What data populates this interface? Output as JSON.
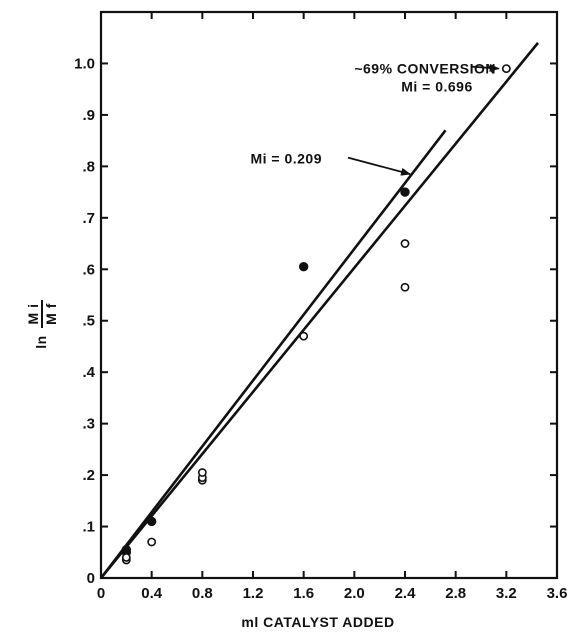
{
  "chart_data": {
    "type": "scatter",
    "xlabel": "ml CATALYST ADDED",
    "ylabel": "ln",
    "ylabel_numerator": "M i",
    "ylabel_denominator": "M f",
    "xlim": [
      0,
      3.6
    ],
    "ylim": [
      0,
      1.1
    ],
    "x_ticks": [
      0,
      0.4,
      0.8,
      1.2,
      1.6,
      2.0,
      2.4,
      2.8,
      3.2,
      3.6
    ],
    "x_tick_labels": [
      "0",
      "0.4",
      "0.8",
      "1.2",
      "1.6",
      "2.0",
      "2.4",
      "2.8",
      "3.2",
      "3.6"
    ],
    "y_ticks": [
      0,
      0.1,
      0.2,
      0.3,
      0.4,
      0.5,
      0.6,
      0.7,
      0.8,
      0.9,
      1.0
    ],
    "y_tick_labels": [
      "0",
      ".1",
      ".2",
      ".3",
      ".4",
      ".5",
      ".6",
      ".7",
      ".8",
      ".9",
      "1.0"
    ],
    "grid": false,
    "series": [
      {
        "marker": "filled",
        "color": "#111111",
        "x": [
          0.2,
          0.2,
          0.4,
          1.6,
          2.4
        ],
        "y": [
          0.05,
          0.055,
          0.11,
          0.605,
          0.75
        ]
      },
      {
        "marker": "open",
        "color": "#111111",
        "x": [
          0.2,
          0.2,
          0.4,
          0.8,
          0.8,
          0.8,
          1.6,
          2.4,
          2.4,
          3.2
        ],
        "y": [
          0.035,
          0.04,
          0.07,
          0.19,
          0.195,
          0.205,
          0.47,
          0.65,
          0.565,
          0.99
        ]
      }
    ],
    "lines": [
      {
        "x": [
          0,
          2.72
        ],
        "y": [
          0,
          0.87
        ]
      },
      {
        "x": [
          0,
          3.45
        ],
        "y": [
          0,
          1.04
        ]
      }
    ],
    "annotations": [
      {
        "text": "~69% CONVERSION",
        "x": 2.0,
        "y": 0.99
      },
      {
        "text": "Mi = 0.696",
        "x": 2.37,
        "y": 0.955
      },
      {
        "text": "Mi = 0.209",
        "x": 1.18,
        "y": 0.815
      }
    ]
  }
}
